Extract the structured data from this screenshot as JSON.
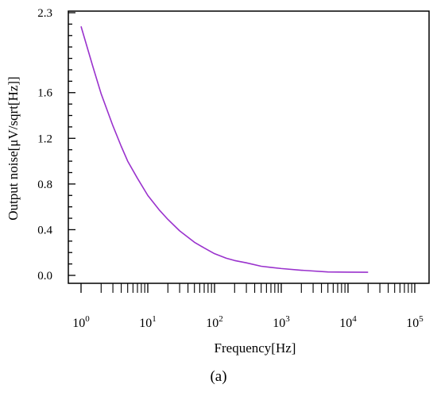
{
  "caption": "(a)",
  "chart_data": {
    "type": "line",
    "title": "",
    "xlabel": "Frequency[Hz]",
    "ylabel": "Output noise[μV/sqrt[Hz]]",
    "xscale": "log",
    "xlim": [
      1,
      100000
    ],
    "ylim": [
      0.0,
      2.3
    ],
    "x_ticks": [
      {
        "base": "10",
        "exp": "0"
      },
      {
        "base": "10",
        "exp": "1"
      },
      {
        "base": "10",
        "exp": "2"
      },
      {
        "base": "10",
        "exp": "3"
      },
      {
        "base": "10",
        "exp": "4"
      },
      {
        "base": "10",
        "exp": "5"
      }
    ],
    "y_ticks": [
      "0.0",
      "0.4",
      "0.8",
      "1.2",
      "1.6",
      "2.3"
    ],
    "y_tick_values": [
      0.0,
      0.4,
      0.8,
      1.2,
      1.6,
      2.3
    ],
    "grid": false,
    "series": [
      {
        "color": "#9a32cd",
        "x": [
          1,
          1.5,
          2,
          3,
          4,
          5,
          7,
          10,
          15,
          20,
          30,
          50,
          70,
          100,
          150,
          200,
          300,
          500,
          700,
          1000,
          2000,
          5000,
          10000,
          20000
        ],
        "y": [
          2.18,
          1.83,
          1.59,
          1.31,
          1.13,
          1.0,
          0.85,
          0.7,
          0.57,
          0.49,
          0.39,
          0.29,
          0.24,
          0.19,
          0.15,
          0.13,
          0.11,
          0.08,
          0.07,
          0.06,
          0.045,
          0.03,
          0.028,
          0.027
        ]
      }
    ]
  }
}
